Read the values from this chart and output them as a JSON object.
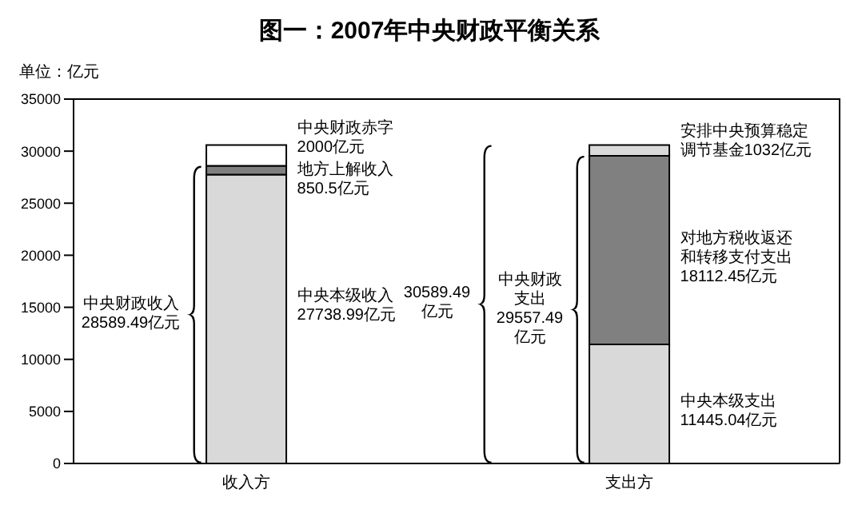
{
  "chart_data": {
    "type": "bar",
    "title": "图一：2007年中央财政平衡关系",
    "ylabel": "单位：亿元",
    "categories": [
      "收入方",
      "支出方"
    ],
    "stacked": true,
    "series": [
      {
        "values": [
          27738.99,
          11445.04
        ],
        "colors": [
          "#d9d9d9",
          "#d9d9d9"
        ]
      },
      {
        "values": [
          850.5,
          18112.45
        ],
        "colors": [
          "#808080",
          "#808080"
        ]
      },
      {
        "values": [
          2000,
          1032
        ],
        "colors": [
          "#ffffff",
          "#d9d9d9"
        ]
      }
    ],
    "ylim": [
      0,
      35000
    ],
    "yticks": [
      0,
      5000,
      10000,
      15000,
      20000,
      25000,
      30000,
      35000
    ],
    "annotations": [
      "中央财政赤字2000亿元",
      "地方上解收入850.5亿元",
      "中央本级收入27738.99亿元",
      "中央财政收入28589.49亿元",
      "安排中央预算稳定调节基金1032亿元",
      "对地方税收返还和转移支付支出18112.45亿元",
      "中央本级支出11445.04亿元",
      "30589.49亿元",
      "中央财政支出29557.49亿元"
    ]
  }
}
